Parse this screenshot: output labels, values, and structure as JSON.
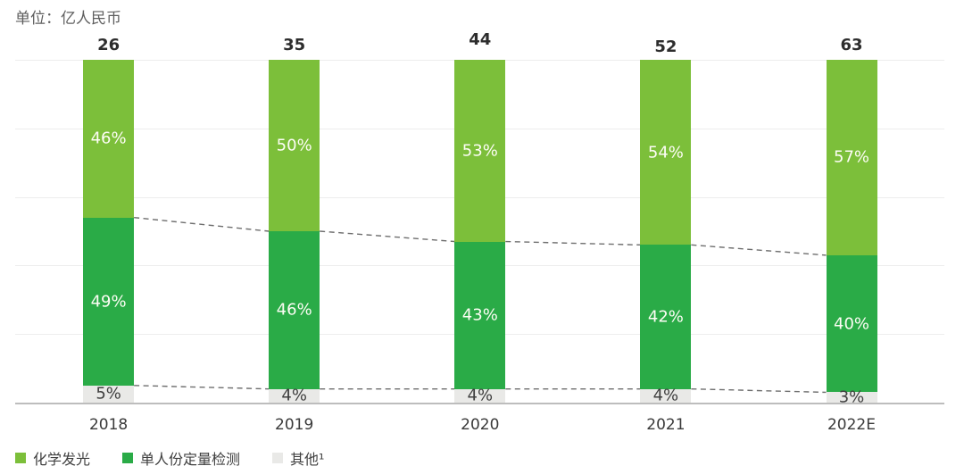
{
  "chart_data": {
    "type": "bar",
    "subtype": "stacked-100-percent-column",
    "title": "",
    "unit_label": "单位：亿人民币",
    "categories": [
      "2018",
      "2019",
      "2020",
      "2021",
      "2022E"
    ],
    "totals": [
      "26",
      "35",
      "44",
      "52",
      "63"
    ],
    "series": [
      {
        "name": "化学发光",
        "values": [
          46,
          50,
          53,
          54,
          57
        ],
        "color": "#7CBF3A",
        "label_color": "#FDFDF5"
      },
      {
        "name": "单人份定量检测",
        "values": [
          49,
          46,
          43,
          42,
          40
        ],
        "color": "#2AAB47",
        "label_color": "#FDFDF5"
      },
      {
        "name": "其他¹",
        "values": [
          5,
          4,
          4,
          4,
          3
        ],
        "color": "#E9E9E7",
        "label_color": "#3F3F3F"
      }
    ],
    "value_suffix": "%",
    "ylim": [
      0,
      100
    ],
    "grid": "horizontal, every 20%",
    "legend_position": "bottom-left",
    "dashed_connectors": [
      "boundary between 化学发光 and 单人份定量检测 across bars",
      "boundary between 单人份定量检测 and 其他¹ across bars"
    ],
    "connector_color": "#6E6E6E",
    "axis_color": "#BDBDBD",
    "gridline_color": "#EDEDED"
  }
}
